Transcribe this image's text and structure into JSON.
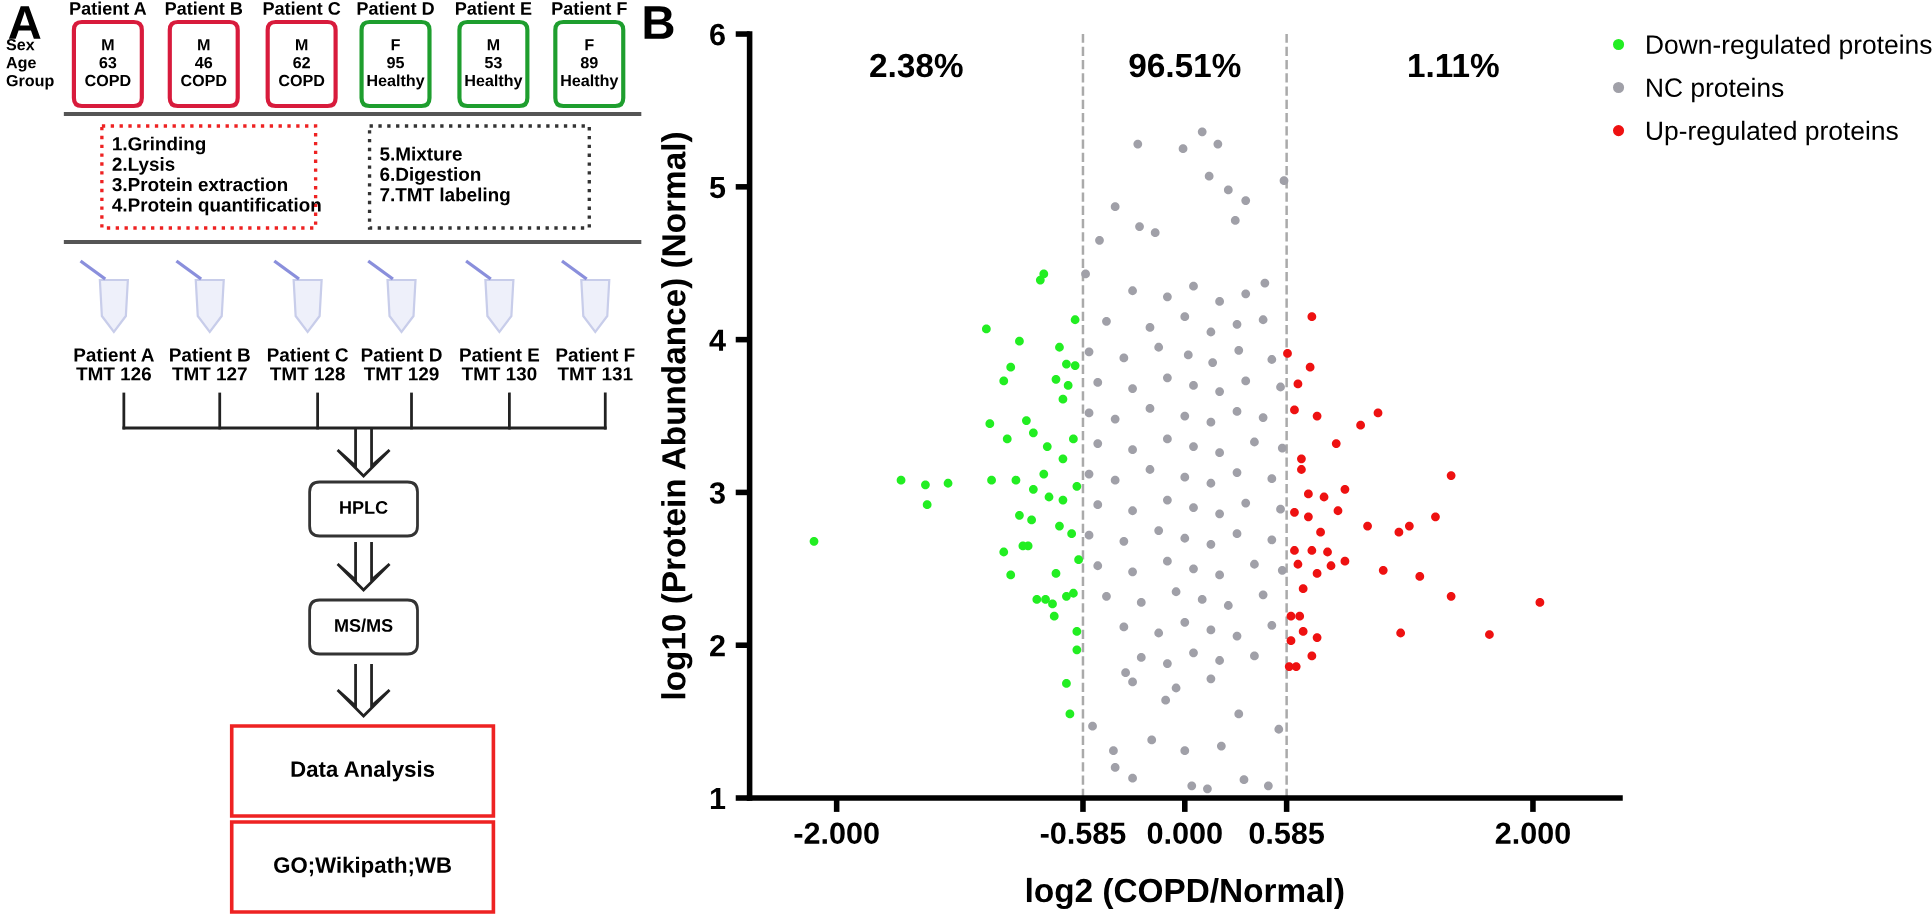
{
  "chart_data": [
    {
      "type": "other",
      "title": "A",
      "annotations": [
        "Patient A",
        "Patient B",
        "Patient C",
        "Patient D",
        "Patient E",
        "Patient F",
        "Sex\nAge\nGroup",
        "M\n63\nCOPD",
        "M\n46\nCOPD",
        "M\n62\nCOPD",
        "F\n95\nHealthy",
        "M\n53\nHealthy",
        "F\n89\nHealthy",
        "1.Grinding\n2.Lysis\n3.Protein extraction\n4.Protein quantification",
        "5.Mixture\n6.Digestion\n7.TMT labeling",
        "Patient A\nTMT 126",
        "Patient B\nTMT 127",
        "Patient C\nTMT 128",
        "Patient D\nTMT 129",
        "Patient E\nTMT 130",
        "Patient F\nTMT 131",
        "HPLC",
        "MS/MS",
        "Data Analysis",
        "GO;Wikipath;WB"
      ]
    },
    {
      "type": "scatter",
      "title": "B",
      "xlabel": "log2 (COPD/Normal)",
      "ylabel": "log10 (Protein Abundance) (Normal)",
      "xlim": [
        -2.5,
        2.5
      ],
      "ylim": [
        1,
        6
      ],
      "xticks": [
        {
          "value": -2,
          "label": "-2.000"
        },
        {
          "value": -0.585,
          "label": "-0.585"
        },
        {
          "value": 0,
          "label": "0.000"
        },
        {
          "value": 0.585,
          "label": "0.585"
        },
        {
          "value": 2,
          "label": "2.000"
        }
      ],
      "yticks": [
        1,
        2,
        3,
        4,
        5,
        6
      ],
      "grid": false,
      "legend": "top right",
      "marker": "circle",
      "ref_lines": [
        {
          "axis": "x",
          "value": -0.585,
          "color": "#aaaaaa",
          "line_style": "dashed"
        },
        {
          "axis": "x",
          "value": 0.585,
          "color": "#aaaaaa",
          "line_style": "dashed"
        }
      ],
      "annotations": [
        "2.38%",
        "96.51%",
        "1.11%"
      ],
      "series": [
        {
          "name": "Down-regulated proteins",
          "color": "#22ee22",
          "x": [
            -0.81,
            -0.83,
            -1.14,
            -0.63,
            -0.95,
            -0.72,
            -1.0,
            -0.68,
            -0.63,
            -1.04,
            -0.74,
            -0.67,
            -0.7,
            -1.12,
            -0.91,
            -0.87,
            -1.02,
            -0.79,
            -0.64,
            -0.7,
            -2.13,
            -1.63,
            -1.49,
            -1.48,
            -1.36,
            -1.11,
            -0.97,
            -1.04,
            -1.0,
            -0.95,
            -0.88,
            -0.9,
            -0.85,
            -0.8,
            -0.75,
            -0.74,
            -0.76,
            -0.68,
            -0.64,
            -0.62,
            -0.62,
            -0.68,
            -0.66,
            -0.78,
            -0.7,
            -0.62,
            -0.72,
            -0.65,
            -0.61,
            -0.87,
            -0.81,
            -0.93
          ],
          "values": [
            4.43,
            4.39,
            4.07,
            4.13,
            3.99,
            3.95,
            3.82,
            3.84,
            3.83,
            3.73,
            3.74,
            3.7,
            3.61,
            3.45,
            3.47,
            3.39,
            3.35,
            3.3,
            3.35,
            3.22,
            2.68,
            3.08,
            3.05,
            2.92,
            3.06,
            3.08,
            3.08,
            2.61,
            2.46,
            2.85,
            2.82,
            2.65,
            2.3,
            2.3,
            2.19,
            2.47,
            2.27,
            2.32,
            2.34,
            2.09,
            1.97,
            1.75,
            1.55,
            2.97,
            2.95,
            3.04,
            2.78,
            2.73,
            2.56,
            3.02,
            3.12,
            2.65
          ]
        },
        {
          "name": "NC proteins",
          "color": "#a0a0a8",
          "x": [
            0.1,
            -0.27,
            0.19,
            -0.01,
            0.57,
            0.14,
            0.25,
            -0.4,
            0.35,
            -0.26,
            -0.49,
            0.29,
            -0.17,
            -0.57,
            0.46,
            -0.53,
            -0.41,
            -0.4,
            -0.3,
            0.04,
            0.13,
            0.34,
            0.48,
            0.54,
            -0.19,
            0.0,
            0.21,
            0.31,
            -0.11,
            -0.34,
            -0.3,
            -0.1,
            0.05,
            0.2,
            0.35,
            -0.45,
            -0.2,
            0.0,
            0.15,
            0.3,
            0.45,
            -0.55,
            -0.35,
            -0.15,
            0.02,
            0.16,
            0.31,
            0.5,
            -0.5,
            -0.3,
            -0.1,
            0.05,
            0.2,
            0.35,
            0.55,
            -0.55,
            -0.4,
            -0.2,
            0.0,
            0.15,
            0.3,
            0.45,
            -0.5,
            -0.3,
            -0.1,
            0.05,
            0.2,
            0.4,
            0.56,
            -0.55,
            -0.4,
            -0.2,
            0.0,
            0.15,
            0.3,
            0.5,
            -0.5,
            -0.3,
            -0.1,
            0.05,
            0.2,
            0.35,
            0.55,
            -0.55,
            -0.35,
            -0.15,
            0.0,
            0.15,
            0.3,
            0.5,
            -0.5,
            -0.3,
            -0.1,
            0.05,
            0.2,
            0.4,
            0.56,
            -0.45,
            -0.25,
            -0.05,
            0.1,
            0.25,
            0.45,
            -0.35,
            -0.15,
            0.0,
            0.15,
            0.3,
            0.5,
            -0.25,
            -0.1,
            0.05,
            0.2,
            0.4,
            -0.3,
            -0.05,
            0.15
          ],
          "values": [
            5.36,
            5.28,
            5.28,
            5.25,
            5.04,
            5.07,
            4.98,
            4.87,
            4.91,
            4.74,
            4.65,
            4.78,
            4.7,
            4.43,
            4.37,
            1.47,
            1.31,
            1.2,
            1.13,
            1.08,
            1.06,
            1.12,
            1.08,
            1.45,
            1.38,
            1.31,
            1.34,
            1.55,
            1.64,
            1.82,
            4.32,
            4.28,
            4.35,
            4.25,
            4.3,
            4.12,
            4.08,
            4.15,
            4.05,
            4.1,
            4.13,
            3.92,
            3.88,
            3.95,
            3.9,
            3.85,
            3.93,
            3.87,
            3.72,
            3.68,
            3.75,
            3.7,
            3.66,
            3.73,
            3.69,
            3.52,
            3.48,
            3.55,
            3.5,
            3.46,
            3.53,
            3.49,
            3.32,
            3.28,
            3.35,
            3.3,
            3.26,
            3.33,
            3.29,
            3.12,
            3.08,
            3.15,
            3.1,
            3.06,
            3.13,
            3.09,
            2.92,
            2.88,
            2.95,
            2.9,
            2.86,
            2.93,
            2.89,
            2.72,
            2.68,
            2.75,
            2.7,
            2.66,
            2.73,
            2.69,
            2.52,
            2.48,
            2.55,
            2.5,
            2.46,
            2.53,
            2.49,
            2.32,
            2.28,
            2.35,
            2.3,
            2.26,
            2.33,
            2.12,
            2.08,
            2.15,
            2.1,
            2.06,
            2.13,
            1.92,
            1.88,
            1.95,
            1.9,
            1.93,
            1.76,
            1.72,
            1.78
          ]
        },
        {
          "name": "Up-regulated proteins",
          "color": "#ee1111",
          "x": [
            0.73,
            0.59,
            0.72,
            0.65,
            0.63,
            0.76,
            1.01,
            1.11,
            0.87,
            0.67,
            1.53,
            0.67,
            0.92,
            0.8,
            0.71,
            0.88,
            0.63,
            0.71,
            0.78,
            1.05,
            1.23,
            1.29,
            1.44,
            0.63,
            0.73,
            0.82,
            0.65,
            0.84,
            0.92,
            0.76,
            1.14,
            1.35,
            0.68,
            1.53,
            2.04,
            0.61,
            0.66,
            0.68,
            0.61,
            0.76,
            1.24,
            1.75,
            0.73,
            0.6,
            0.64
          ],
          "values": [
            4.15,
            3.91,
            3.82,
            3.71,
            3.54,
            3.5,
            3.44,
            3.52,
            3.32,
            3.22,
            3.11,
            3.15,
            3.02,
            2.97,
            2.99,
            2.88,
            2.87,
            2.84,
            2.74,
            2.78,
            2.74,
            2.78,
            2.84,
            2.62,
            2.62,
            2.61,
            2.53,
            2.52,
            2.55,
            2.47,
            2.49,
            2.45,
            2.37,
            2.32,
            2.28,
            2.19,
            2.19,
            2.09,
            2.03,
            2.05,
            2.08,
            2.07,
            1.93,
            1.86,
            1.86
          ]
        }
      ]
    }
  ]
}
